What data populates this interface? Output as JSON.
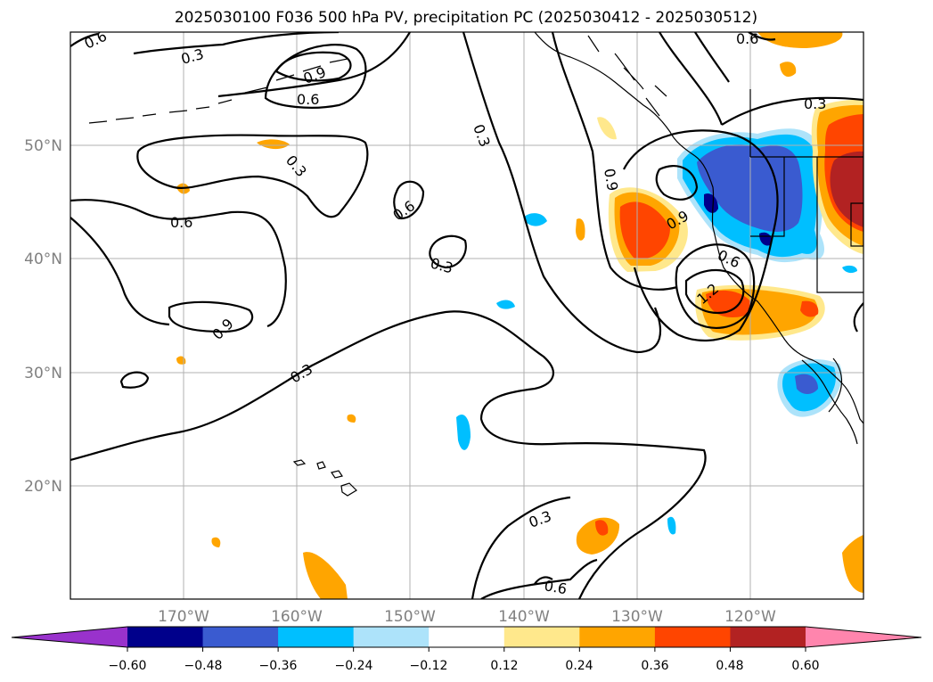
{
  "title": "2025030100 F036 500 hPa PV, precipitation PC (2025030412 - 2025030512)",
  "map": {
    "lon_labels": [
      "170°W",
      "160°W",
      "150°W",
      "140°W",
      "130°W",
      "120°W"
    ],
    "lat_labels": [
      "50°N",
      "40°N",
      "30°N",
      "20°N"
    ],
    "contour_labels": [
      "0.6",
      "0.3",
      "0.9",
      "0.6",
      "0.3",
      "0.6",
      "0.3",
      "0.6",
      "0.9",
      "0.3",
      "0.3",
      "0.3",
      "0.6",
      "0.9",
      "0.9",
      "1.2",
      "0.3",
      "0.6",
      "0.6"
    ]
  },
  "colorbar": {
    "tick_labels": [
      "−0.60",
      "−0.48",
      "−0.36",
      "−0.24",
      "−0.12",
      "0.12",
      "0.24",
      "0.36",
      "0.48",
      "0.60"
    ],
    "colors": [
      "#9932cc",
      "#00008b",
      "#3a5bd0",
      "#00bfff",
      "#ade3fa",
      "#ffffff",
      "#ffe88c",
      "#ffa500",
      "#ff4500",
      "#b22222",
      "#ff85ad"
    ]
  }
}
